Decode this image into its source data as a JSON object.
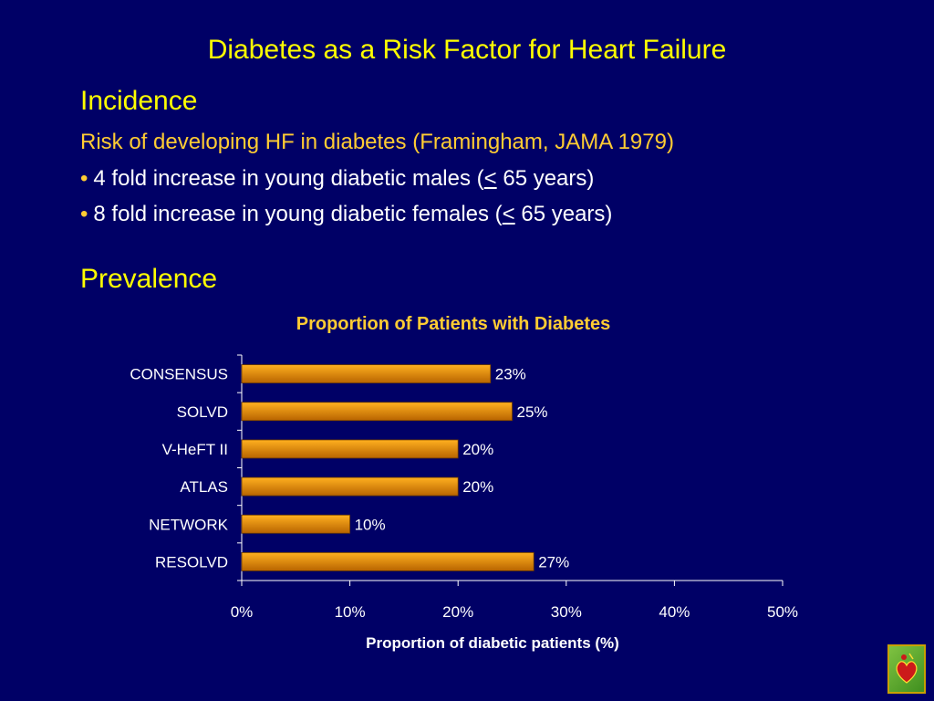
{
  "slide": {
    "title": "Diabetes as a Risk Factor for Heart Failure",
    "incidence_heading": "Incidence",
    "incidence_subheading": "Risk of developing HF in diabetes (Framingham, JAMA 1979)",
    "bullets": [
      {
        "prefix": "4 fold increase in young diabetic males (",
        "symbol": "<",
        "suffix": " 65 years)"
      },
      {
        "prefix": "8 fold increase in young diabetic females (",
        "symbol": "<",
        "suffix": " 65 years)"
      }
    ],
    "bullet_marker": "•",
    "prevalence_heading": "Prevalence",
    "logo_icon": "heart-logo-icon"
  },
  "colors": {
    "background": "#000066",
    "title": "#ffff00",
    "subheading": "#ffcc33",
    "bar_top": "#ffb020",
    "bar_bottom": "#b86400"
  },
  "chart_data": {
    "type": "bar",
    "orientation": "horizontal",
    "title": "Proportion of Patients with Diabetes",
    "categories": [
      "CONSENSUS",
      "SOLVD",
      "V-HeFT II",
      "ATLAS",
      "NETWORK",
      "RESOLVD"
    ],
    "values": [
      23,
      25,
      20,
      20,
      10,
      27
    ],
    "data_labels": [
      "23%",
      "25%",
      "20%",
      "20%",
      "10%",
      "27%"
    ],
    "xlabel": "Proportion of diabetic patients (%)",
    "ylabel": "",
    "xlim": [
      0,
      50
    ],
    "xticks": [
      0,
      10,
      20,
      30,
      40,
      50
    ],
    "xtick_labels": [
      "0%",
      "10%",
      "20%",
      "30%",
      "40%",
      "50%"
    ],
    "grid": false,
    "legend": "none"
  }
}
